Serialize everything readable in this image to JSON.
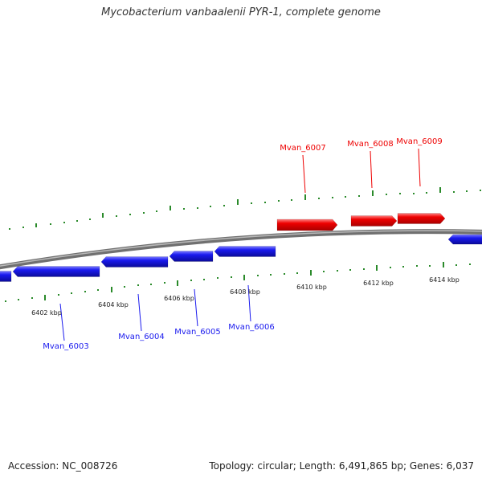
{
  "title": "Mycobacterium vanbaalenii PYR-1, complete genome",
  "footer": {
    "accession": "Accession: NC_008726",
    "summary": "Topology: circular; Length: 6,491,865 bp; Genes: 6,037"
  },
  "colors": {
    "forward_strand": "#ee0000",
    "reverse_strand": "#1a1aee",
    "backbone": "#888888",
    "ticks": "#2a8a2a"
  },
  "scale_labels": [
    "6402 kbp",
    "6404 kbp",
    "6406 kbp",
    "6408 kbp",
    "6410 kbp",
    "6412 kbp",
    "6414 kbp"
  ],
  "genes": [
    {
      "label": "Mvan_6003",
      "strand": "reverse"
    },
    {
      "label": "Mvan_6004",
      "strand": "reverse"
    },
    {
      "label": "Mvan_6005",
      "strand": "reverse"
    },
    {
      "label": "Mvan_6006",
      "strand": "reverse"
    },
    {
      "label": "Mvan_6007",
      "strand": "forward"
    },
    {
      "label": "Mvan_6008",
      "strand": "forward"
    },
    {
      "label": "Mvan_6009",
      "strand": "forward"
    }
  ]
}
